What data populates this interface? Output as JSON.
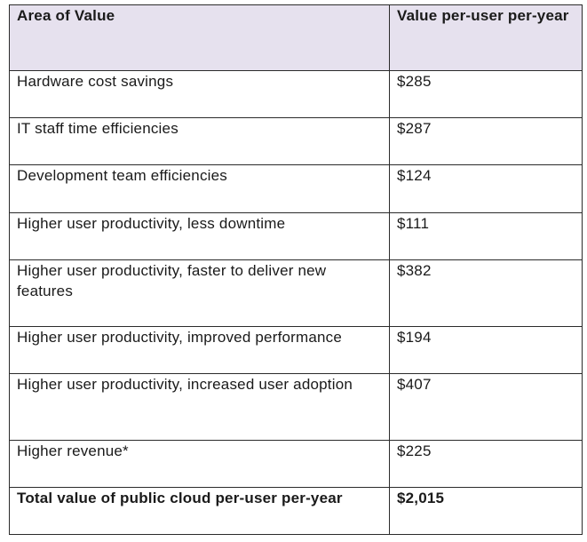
{
  "table": {
    "header": {
      "area": "Area of Value",
      "value": "Value per-user per-year"
    },
    "rows": [
      {
        "area": "Hardware cost savings",
        "value": "$285"
      },
      {
        "area": "IT staff time efficiencies",
        "value": "$287"
      },
      {
        "area": "Development team efficiencies",
        "value": "$124"
      },
      {
        "area": "Higher user productivity, less downtime",
        "value": "$111"
      },
      {
        "area": "Higher user productivity, faster to deliver new features",
        "value": "$382"
      },
      {
        "area": "Higher user productivity, improved performance",
        "value": "$194"
      },
      {
        "area": "Higher user productivity, increased user adoption",
        "value": "$407"
      },
      {
        "area": "Higher revenue*",
        "value": "$225"
      }
    ],
    "total": {
      "area": "Total value of public cloud per-user per-year",
      "value": "$2,015"
    }
  },
  "colors": {
    "header_background": "#e6e1ee",
    "border": "#2b2b2b",
    "text": "#1a1a1a"
  }
}
